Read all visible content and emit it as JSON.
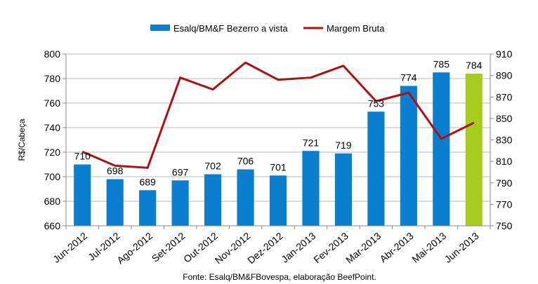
{
  "chart_data": {
    "type": "bar",
    "categories": [
      "Jun-2012",
      "Jul-2012",
      "Ago-2012",
      "Set-2012",
      "Out-2012",
      "Nov-2012",
      "Dez-2012",
      "Jan-2013",
      "Fev-2013",
      "Mar-2013",
      "Abr-2013",
      "Mai-2013",
      "Jun-2013"
    ],
    "series": [
      {
        "name": "Esalq/BM&F Bezerro a vista",
        "type": "bar",
        "axis": "left",
        "color": "#0a7fd0",
        "highlight_color": "#a8cc1c",
        "highlight_index": 12,
        "values": [
          710,
          698,
          689,
          697,
          702,
          706,
          701,
          721,
          719,
          753,
          774,
          785,
          784
        ]
      },
      {
        "name": "Margem Bruta",
        "type": "line",
        "axis": "right",
        "color": "#b01010",
        "values": [
          819,
          806,
          804,
          888,
          877,
          902,
          886,
          888,
          899,
          866,
          874,
          831,
          846
        ]
      }
    ],
    "ylabel": "R$/Cabeça",
    "ylim": [
      660,
      800
    ],
    "yticks": [
      660,
      680,
      700,
      720,
      740,
      760,
      780,
      800
    ],
    "y2lim": [
      750,
      910
    ],
    "y2ticks": [
      750,
      770,
      790,
      810,
      830,
      850,
      870,
      890,
      910
    ],
    "legend_position": "top-center",
    "grid": true,
    "source": "Fonte: Esalq/BM&FBovespa, elaboração BeefPoint."
  }
}
